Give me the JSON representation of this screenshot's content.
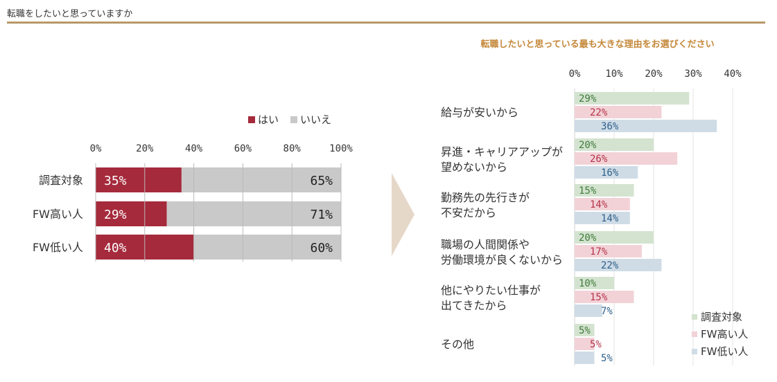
{
  "header": {
    "title": "転職をしたいと思っていますか"
  },
  "colors": {
    "left_yes": "#a52a3c",
    "left_no": "#c9c9c9",
    "right": [
      "#d3e3cf",
      "#f2d2d7",
      "#cfdce6"
    ],
    "right_text": [
      "#3f7a3a",
      "#b53349",
      "#2d5f8a"
    ],
    "arrow": "#e6d8c8",
    "rule": "#b8976a",
    "right_title": "#c4883a"
  },
  "chart_data": [
    {
      "type": "bar",
      "orientation": "horizontal",
      "stacked": true,
      "title": "",
      "categories": [
        "調査対象",
        "FW高い人",
        "FW低い人"
      ],
      "series": [
        {
          "name": "はい",
          "values": [
            35,
            29,
            40
          ],
          "labels": [
            "35%",
            "29%",
            "40%"
          ]
        },
        {
          "name": "いいえ",
          "values": [
            65,
            71,
            60
          ],
          "labels": [
            "65%",
            "71%",
            "60%"
          ]
        }
      ],
      "xlim": [
        0,
        100
      ],
      "xticks": [
        "0%",
        "20%",
        "40%",
        "60%",
        "80%",
        "100%"
      ],
      "legend": "top-right",
      "grid": true
    },
    {
      "type": "bar",
      "orientation": "horizontal",
      "title": "転職したいと思っている最も大きな理由をお選びください",
      "categories": [
        [
          "給与が安いから"
        ],
        [
          "昇進・キャリアアップが",
          "望めないから"
        ],
        [
          "勤務先の先行きが",
          "不安だから"
        ],
        [
          "職場の人間関係や",
          "労働環境が良くないから"
        ],
        [
          "他にやりたい仕事が",
          "出てきたから"
        ],
        [
          "その他"
        ]
      ],
      "series": [
        {
          "name": "調査対象",
          "values": [
            29,
            20,
            15,
            20,
            10,
            5
          ],
          "labels": [
            "29%",
            "20%",
            "15%",
            "20%",
            "10%",
            "5%"
          ]
        },
        {
          "name": "FW高い人",
          "values": [
            22,
            26,
            14,
            17,
            15,
            5
          ],
          "labels": [
            "22%",
            "26%",
            "14%",
            "17%",
            "15%",
            "5%"
          ]
        },
        {
          "name": "FW低い人",
          "values": [
            36,
            16,
            14,
            22,
            7,
            5
          ],
          "labels": [
            "36%",
            "16%",
            "14%",
            "22%",
            "7%",
            "5%"
          ]
        }
      ],
      "xlim": [
        0,
        40
      ],
      "xticks": [
        "0%",
        "10%",
        "20%",
        "30%",
        "40%"
      ],
      "legend": "bottom-right",
      "grid": true
    }
  ]
}
